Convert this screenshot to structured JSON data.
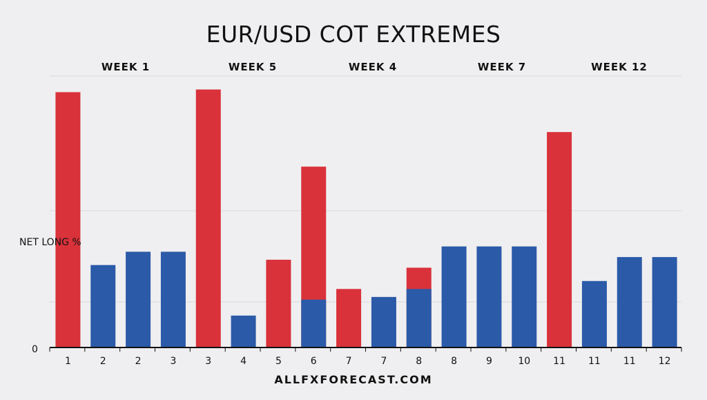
{
  "chart_data": {
    "type": "bar",
    "title": "EUR/USD COT EXTREMES",
    "ylabel": "NET LONG %",
    "y_zero_label": "0",
    "week_labels": [
      "WEEK 1",
      "WEEK 5",
      "WEEK 4",
      "WEEK 7",
      "WEEK 12"
    ],
    "categories": [
      "1",
      "2",
      "2",
      "3",
      "3",
      "4",
      "5",
      "6",
      "7",
      "7",
      "8",
      "8",
      "9",
      "10",
      "11",
      "11",
      "11",
      "12"
    ],
    "series": [
      {
        "color": "#d9323a",
        "values": [
          96,
          0,
          0,
          0,
          97,
          0,
          33,
          68,
          22,
          0,
          30,
          0,
          0,
          0,
          81,
          0,
          0,
          0
        ]
      },
      {
        "color": "#2b5aa8",
        "values": [
          0,
          31,
          36,
          36,
          0,
          12,
          0,
          18,
          0,
          19,
          22,
          38,
          38,
          38,
          0,
          25,
          34,
          34
        ]
      }
    ],
    "ylim": [
      0,
      100
    ],
    "grid": true
  },
  "footer": "ALLFXFORECAST.COM"
}
